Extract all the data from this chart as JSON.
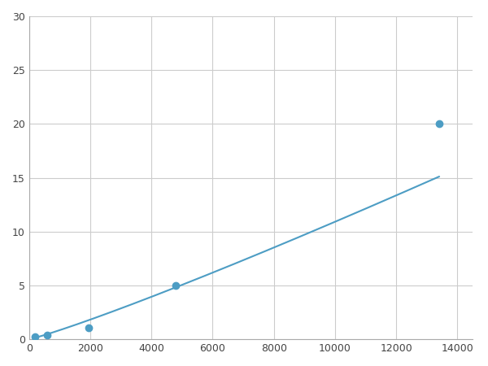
{
  "x": [
    200,
    600,
    1950,
    4800,
    13400
  ],
  "y": [
    0.2,
    0.4,
    1.1,
    5.0,
    20.0
  ],
  "line_color": "#4d9dc4",
  "marker_color": "#4d9dc4",
  "marker_size": 6,
  "line_width": 1.5,
  "xlim": [
    0,
    14500
  ],
  "ylim": [
    0,
    30
  ],
  "xticks": [
    0,
    2000,
    4000,
    6000,
    8000,
    10000,
    12000,
    14000
  ],
  "yticks": [
    0,
    5,
    10,
    15,
    20,
    25,
    30
  ],
  "grid_color": "#cccccc",
  "background_color": "#ffffff",
  "figsize": [
    6.0,
    4.5
  ],
  "dpi": 100
}
